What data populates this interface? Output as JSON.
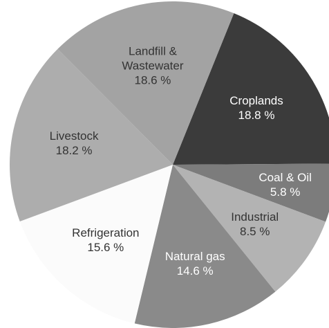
{
  "chart_data": {
    "type": "pie",
    "categories": [
      "Croplands",
      "Coal & Oil",
      "Industrial",
      "Natural gas",
      "Refrigeration",
      "Livestock",
      "Landfill & Wastewater"
    ],
    "values": [
      18.8,
      5.8,
      8.5,
      14.6,
      15.6,
      18.2,
      18.6
    ],
    "value_labels": [
      "18.8 %",
      "5.8 %",
      "8.5 %",
      "14.6 %",
      "15.6 %",
      "18.2 %",
      "18.6 %"
    ],
    "colors": [
      "#3b3b3b",
      "#7c7c7c",
      "#b3b3b3",
      "#8a8a8a",
      "#fbfbfb",
      "#adadad",
      "#a3a3a3"
    ]
  }
}
